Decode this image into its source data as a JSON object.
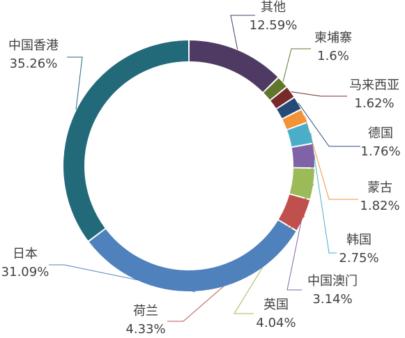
{
  "chart_data": {
    "type": "pie",
    "variant": "donut",
    "title": "",
    "slices": [
      {
        "name": "其他",
        "value": 12.59,
        "label": "12.59%",
        "color": "#4f3a63"
      },
      {
        "name": "柬埔寨",
        "value": 1.6,
        "label": "1.6%",
        "color": "#60762b"
      },
      {
        "name": "马来西亚",
        "value": 1.62,
        "label": "1.62%",
        "color": "#782a2a"
      },
      {
        "name": "德国",
        "value": 1.76,
        "label": "1.76%",
        "color": "#264a78"
      },
      {
        "name": "蒙古",
        "value": 1.82,
        "label": "1.82%",
        "color": "#f39237"
      },
      {
        "name": "韩国",
        "value": 2.75,
        "label": "2.75%",
        "color": "#4aaec9"
      },
      {
        "name": "中国澳门",
        "value": 3.14,
        "label": "3.14%",
        "color": "#7f63a6"
      },
      {
        "name": "英国",
        "value": 4.04,
        "label": "4.04%",
        "color": "#9bbb58"
      },
      {
        "name": "荷兰",
        "value": 4.33,
        "label": "4.33%",
        "color": "#c0504d"
      },
      {
        "name": "日本",
        "value": 31.09,
        "label": "31.09%",
        "color": "#4f81bd"
      },
      {
        "name": "中国香港",
        "value": 35.26,
        "label": "35.26%",
        "color": "#226a7a"
      }
    ],
    "legend": "none",
    "label_position": "outside-with-leader-lines"
  }
}
